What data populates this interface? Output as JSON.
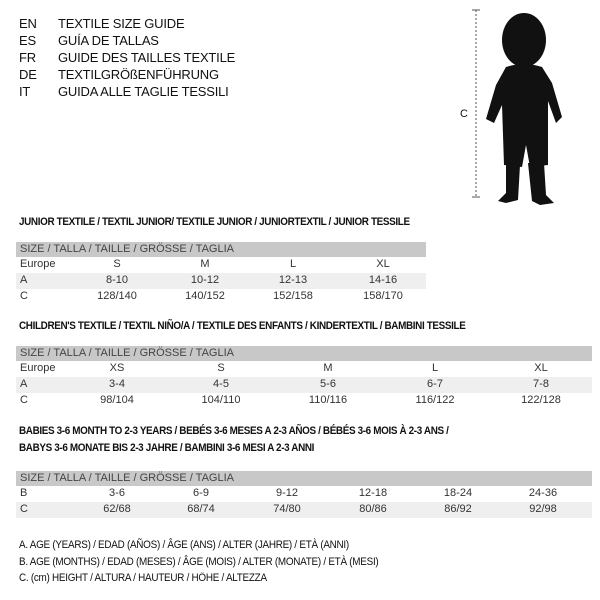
{
  "header": {
    "languages": [
      {
        "code": "EN",
        "text": "TEXTILE SIZE GUIDE"
      },
      {
        "code": "ES",
        "text": "GUÍA DE TALLAS"
      },
      {
        "code": "FR",
        "text": "GUIDE DES TAILLES TEXTILE"
      },
      {
        "code": "DE",
        "text": "TEXTILGRÖßENFÜHRUNG"
      },
      {
        "code": "IT",
        "text": "GUIDA ALLE TAGLIE TESSILI"
      }
    ]
  },
  "figure": {
    "measure_label": "C"
  },
  "junior": {
    "title": "JUNIOR TEXTILE / TEXTIL JUNIOR/ TEXTILE JUNIOR / JUNIORTEXTIL / JUNIOR TESSILE",
    "header": "SIZE / TALLA / TAILLE / GRÖSSE / TAGLIA",
    "rows": [
      {
        "label": "Europe",
        "values": [
          "S",
          "M",
          "L",
          "XL"
        ]
      },
      {
        "label": "A",
        "values": [
          "8-10",
          "10-12",
          "12-13",
          "14-16"
        ]
      },
      {
        "label": "C",
        "values": [
          "128/140",
          "140/152",
          "152/158",
          "158/170"
        ]
      }
    ]
  },
  "children": {
    "title": "CHILDREN'S TEXTILE / TEXTIL NIÑO/A / TEXTILE DES ENFANTS / KINDERTEXTIL / BAMBINI TESSILE",
    "header": "SIZE / TALLA / TAILLE / GRÖSSE / TAGLIA",
    "rows": [
      {
        "label": "Europe",
        "values": [
          "XS",
          "S",
          "M",
          "L",
          "XL"
        ]
      },
      {
        "label": "A",
        "values": [
          "3-4",
          "4-5",
          "5-6",
          "6-7",
          "7-8"
        ]
      },
      {
        "label": "C",
        "values": [
          "98/104",
          "104/110",
          "110/116",
          "116/122",
          "122/128"
        ]
      }
    ]
  },
  "babies": {
    "title_line1": "BABIES 3-6 MONTH TO 2-3 YEARS / BEBÉS 3-6 MESES A 2-3 AÑOS / BÉBÉS 3-6 MOIS À 2-3 ANS /",
    "title_line2": "BABYS 3-6 MONATE BIS 2-3 JAHRE / BAMBINI 3-6 MESI A 2-3 ANNI",
    "header": "SIZE / TALLA / TAILLE / GRÖSSE / TAGLIA",
    "rows": [
      {
        "label": "B",
        "values": [
          "3-6",
          "6-9",
          "9-12",
          "12-18",
          "18-24",
          "24-36"
        ]
      },
      {
        "label": "C",
        "values": [
          "62/68",
          "68/74",
          "74/80",
          "80/86",
          "86/92",
          "92/98"
        ]
      }
    ]
  },
  "legend": [
    "A. AGE (YEARS) / EDAD (AÑOS) / ÂGE (ANS) / ALTER (JAHRE) / ETÀ (ANNI)",
    "B. AGE (MONTHS) / EDAD (MESES) / ÂGE (MOIS) / ALTER (MONATE) / ETÀ (MESI)",
    "C. (cm) HEIGHT / ALTURA / HAUTEUR / HÖHE / ALTEZZA"
  ]
}
